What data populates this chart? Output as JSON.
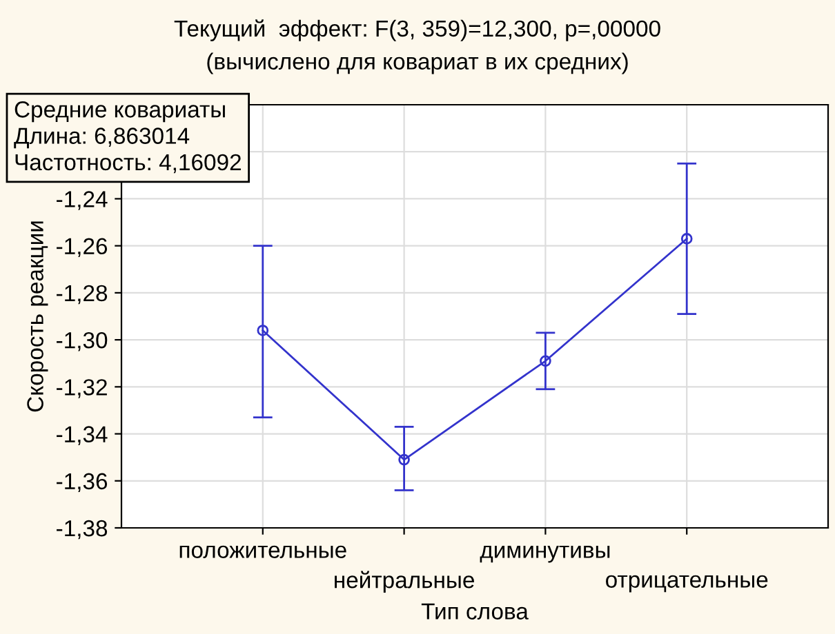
{
  "chart_data": {
    "type": "line",
    "title": "Текущий  эффект: F(3, 359)=12,300, p=,00000",
    "subtitle": "(вычислено для ковариат в их средних)",
    "xlabel": "Тип слова",
    "ylabel": "Скорость реакции",
    "categories": [
      "положительные",
      "нейтральные",
      "диминутивы",
      "отрицательные"
    ],
    "series": [
      {
        "color": "#3333cc",
        "values": [
          -1.296,
          -1.351,
          -1.309,
          -1.257
        ],
        "errors": [
          [
            -1.333,
            -1.26
          ],
          [
            -1.364,
            -1.337
          ],
          [
            -1.321,
            -1.297
          ],
          [
            -1.289,
            -1.225
          ]
        ]
      }
    ],
    "ylim": [
      -1.38,
      -1.2
    ],
    "yticks": [
      {
        "value": -1.38,
        "label": "-1,38"
      },
      {
        "value": -1.36,
        "label": "-1,36"
      },
      {
        "value": -1.34,
        "label": "-1,34"
      },
      {
        "value": -1.32,
        "label": "-1,32"
      },
      {
        "value": -1.3,
        "label": "-1,30"
      },
      {
        "value": -1.28,
        "label": "-1,28"
      },
      {
        "value": -1.26,
        "label": "-1,26"
      },
      {
        "value": -1.24,
        "label": "-1,24"
      },
      {
        "value": -1.22,
        "label": null
      },
      {
        "value": -1.2,
        "label": null
      }
    ],
    "annotations": [
      "Средние ковариаты\nДлина: 6,863014\nЧастотность: 4,16092"
    ],
    "grid": true,
    "legend": false,
    "marker": "circle",
    "line_style": "solid"
  }
}
